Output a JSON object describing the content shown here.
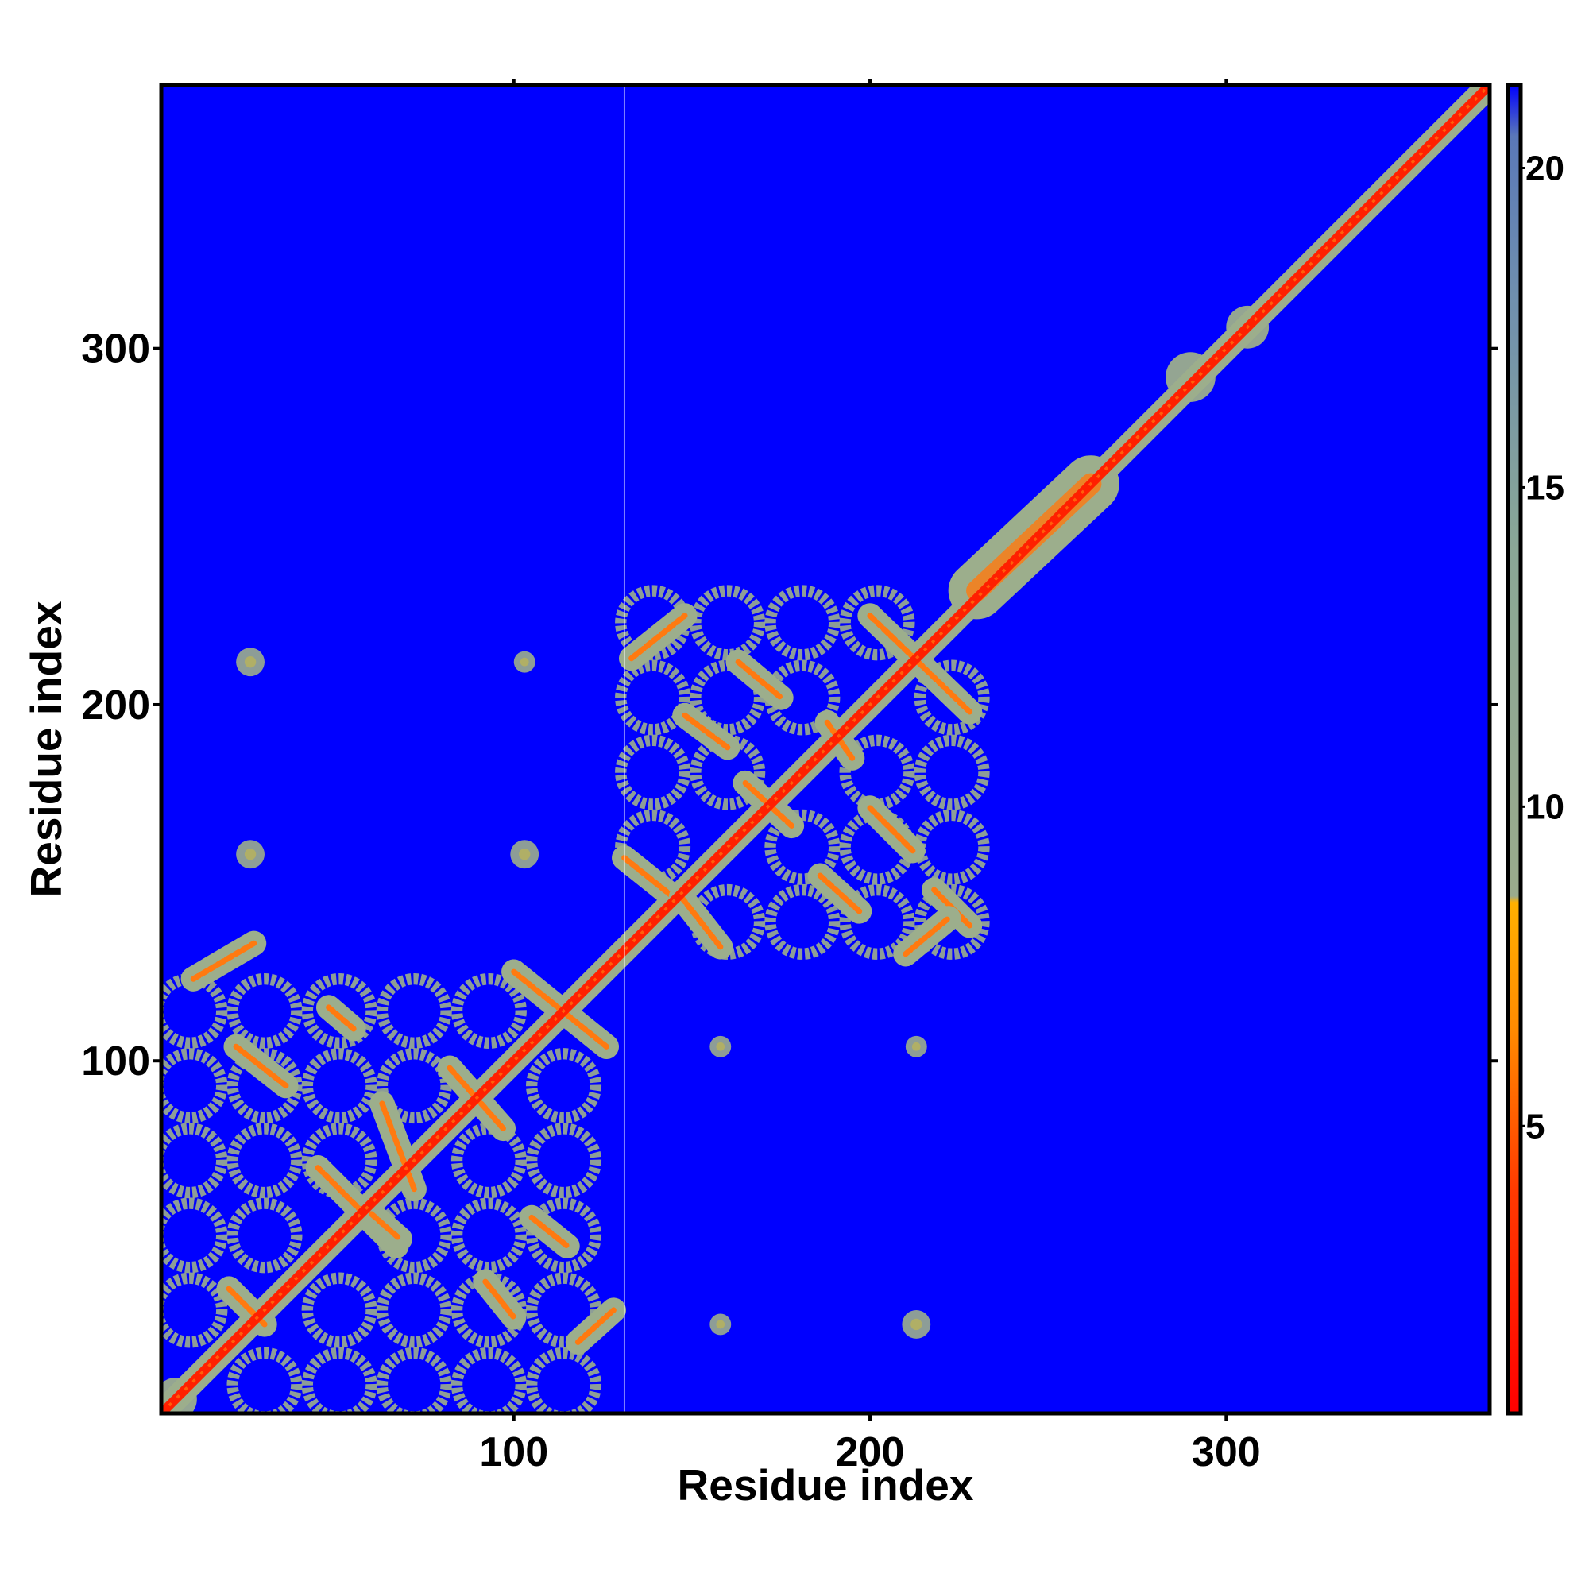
{
  "chart_data": {
    "type": "heatmap",
    "title": "",
    "xlabel": "Residue index",
    "ylabel": "Residue index",
    "xlim": [
      1,
      374
    ],
    "ylim": [
      1,
      374
    ],
    "x_ticks": [
      100,
      200,
      300
    ],
    "y_ticks": [
      100,
      200,
      300
    ],
    "x_tick_labels": [
      "100",
      "200",
      "300"
    ],
    "y_tick_labels": [
      "100",
      "200",
      "300"
    ],
    "colorbar": {
      "ticks": [
        5,
        10,
        15,
        20
      ],
      "tick_labels": [
        "5",
        "10",
        "15",
        "20"
      ],
      "range": [
        0.5,
        21.3
      ],
      "stops": [
        {
          "value": 0.5,
          "color": "#ff0000"
        },
        {
          "value": 4.0,
          "color": "#ff3a00"
        },
        {
          "value": 6.5,
          "color": "#ff8a00"
        },
        {
          "value": 8.5,
          "color": "#ffb000"
        },
        {
          "value": 8.6,
          "color": "#9aaa8c"
        },
        {
          "value": 14.0,
          "color": "#8aa796"
        },
        {
          "value": 18.0,
          "color": "#6f8fae"
        },
        {
          "value": 20.5,
          "color": "#5a78b8"
        },
        {
          "value": 21.3,
          "color": "#0000ff"
        }
      ]
    },
    "background_value": 21.3,
    "colors": {
      "background": "#0000ff",
      "diagonal": "#ff2000",
      "contact": "#ff7a10",
      "halo": "#9cae8c",
      "divider": "#ffffff"
    },
    "domains": [
      {
        "start": 1,
        "end": 131
      },
      {
        "start": 131,
        "end": 235
      },
      {
        "start": 235,
        "end": 374
      }
    ],
    "divider_residue": 131,
    "helix_segments": [
      {
        "x1": 10,
        "y1": 123,
        "x2": 27,
        "y2": 133
      },
      {
        "x1": 48,
        "y1": 115,
        "x2": 55,
        "y2": 109
      },
      {
        "x1": 22,
        "y1": 104,
        "x2": 36,
        "y2": 93
      },
      {
        "x1": 82,
        "y1": 98,
        "x2": 97,
        "y2": 81
      },
      {
        "x1": 100,
        "y1": 125,
        "x2": 126,
        "y2": 104
      },
      {
        "x1": 45,
        "y1": 70,
        "x2": 67,
        "y2": 48
      },
      {
        "x1": 60,
        "y1": 57,
        "x2": 68,
        "y2": 50
      },
      {
        "x1": 92,
        "y1": 38,
        "x2": 100,
        "y2": 28
      },
      {
        "x1": 105,
        "y1": 56,
        "x2": 115,
        "y2": 48
      },
      {
        "x1": 118,
        "y1": 21,
        "x2": 128,
        "y2": 30
      },
      {
        "x1": 20,
        "y1": 36,
        "x2": 30,
        "y2": 26
      },
      {
        "x1": 63,
        "y1": 88,
        "x2": 72,
        "y2": 64
      },
      {
        "x1": 133,
        "y1": 213,
        "x2": 148,
        "y2": 225
      },
      {
        "x1": 163,
        "y1": 212,
        "x2": 175,
        "y2": 202
      },
      {
        "x1": 148,
        "y1": 197,
        "x2": 160,
        "y2": 188
      },
      {
        "x1": 188,
        "y1": 195,
        "x2": 195,
        "y2": 185
      },
      {
        "x1": 200,
        "y1": 225,
        "x2": 228,
        "y2": 198
      },
      {
        "x1": 165,
        "y1": 178,
        "x2": 178,
        "y2": 166
      },
      {
        "x1": 200,
        "y1": 171,
        "x2": 212,
        "y2": 159
      },
      {
        "x1": 131,
        "y1": 157,
        "x2": 146,
        "y2": 145
      },
      {
        "x1": 147,
        "y1": 146,
        "x2": 158,
        "y2": 132
      },
      {
        "x1": 186,
        "y1": 152,
        "x2": 197,
        "y2": 142
      },
      {
        "x1": 218,
        "y1": 148,
        "x2": 228,
        "y2": 138
      },
      {
        "x1": 210,
        "y1": 130,
        "x2": 222,
        "y2": 140
      }
    ],
    "blobs": [
      {
        "x": 26,
        "y": 212,
        "r": 4
      },
      {
        "x": 103,
        "y": 212,
        "r": 3
      },
      {
        "x": 26,
        "y": 158,
        "r": 4
      },
      {
        "x": 103,
        "y": 158,
        "r": 4
      },
      {
        "x": 158,
        "y": 104,
        "r": 3
      },
      {
        "x": 213,
        "y": 104,
        "r": 3
      },
      {
        "x": 158,
        "y": 26,
        "r": 3
      },
      {
        "x": 213,
        "y": 26,
        "r": 4
      }
    ],
    "bulges": [
      {
        "x": 290,
        "y": 292,
        "r": 7
      },
      {
        "x": 306,
        "y": 306,
        "r": 6
      },
      {
        "x": 5,
        "y": 5,
        "r": 6
      }
    ],
    "thick_segments": [
      {
        "x1": 230,
        "y1": 232,
        "x2": 262,
        "y2": 262
      }
    ]
  }
}
